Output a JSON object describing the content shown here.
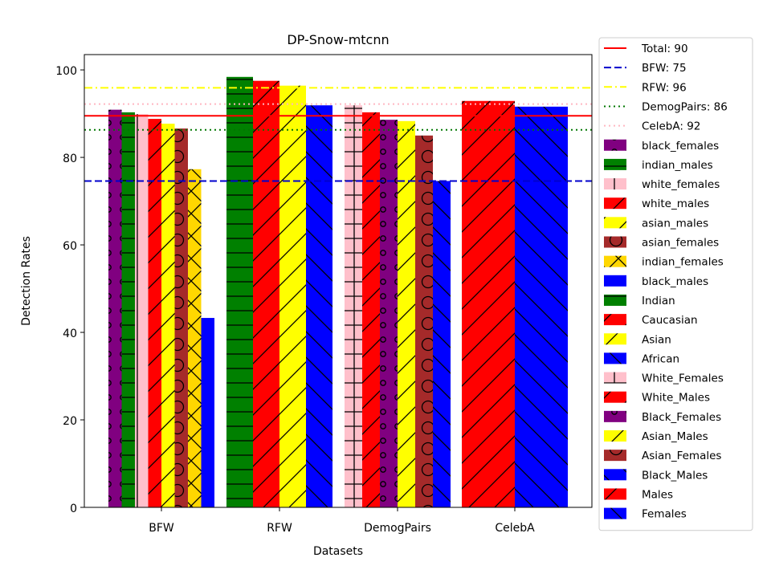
{
  "chart_data": {
    "type": "bar",
    "title": "DP-Snow-mtcnn",
    "xlabel": "Datasets",
    "ylabel": "Detection Rates",
    "ylim": [
      0,
      103.5
    ],
    "yticks": [
      0,
      20,
      40,
      60,
      80,
      100
    ],
    "categories": [
      "BFW",
      "RFW",
      "DemogPairs",
      "CelebA"
    ],
    "grid": false,
    "legend_position": "right-outside",
    "reference_lines": [
      {
        "name": "Total: 90",
        "value": 89.5,
        "color": "#ff0000",
        "style": "solid"
      },
      {
        "name": "BFW: 75",
        "value": 74.6,
        "color": "#0000cc",
        "style": "dashed"
      },
      {
        "name": "RFW: 96",
        "value": 95.9,
        "color": "#ffff00",
        "style": "dashdot"
      },
      {
        "name": "DemogPairs: 86",
        "value": 86.3,
        "color": "#007700",
        "style": "dotted"
      },
      {
        "name": "CelebA: 92",
        "value": 92.2,
        "color": "#ffb6c1",
        "style": "dotted"
      }
    ],
    "groups": [
      {
        "category": "BFW",
        "bars": [
          {
            "name": "black_females",
            "value": 90.9,
            "color": "#800080",
            "hatch": "o"
          },
          {
            "name": "indian_males",
            "value": 90.3,
            "color": "#008000",
            "hatch": "-"
          },
          {
            "name": "white_females",
            "value": 89.9,
            "color": "#ffc0cb",
            "hatch": "|"
          },
          {
            "name": "white_males",
            "value": 88.8,
            "color": "#ff0000",
            "hatch": "/"
          },
          {
            "name": "asian_males",
            "value": 87.7,
            "color": "#ffff00",
            "hatch": "/"
          },
          {
            "name": "asian_females",
            "value": 86.6,
            "color": "#a52a2a",
            "hatch": "O"
          },
          {
            "name": "indian_females",
            "value": 77.3,
            "color": "#ffd700",
            "hatch": "x"
          },
          {
            "name": "black_males",
            "value": 43.3,
            "color": "#0000ff",
            "hatch": ""
          }
        ]
      },
      {
        "category": "RFW",
        "bars": [
          {
            "name": "Indian",
            "value": 98.4,
            "color": "#008000",
            "hatch": "-"
          },
          {
            "name": "Caucasian",
            "value": 97.5,
            "color": "#ff0000",
            "hatch": "/"
          },
          {
            "name": "Asian",
            "value": 96.4,
            "color": "#ffff00",
            "hatch": "/"
          },
          {
            "name": "African",
            "value": 91.9,
            "color": "#0000ff",
            "hatch": "\\"
          }
        ]
      },
      {
        "category": "DemogPairs",
        "bars": [
          {
            "name": "White_Females",
            "value": 91.9,
            "color": "#ffc0cb",
            "hatch": "+"
          },
          {
            "name": "White_Males",
            "value": 90.3,
            "color": "#ff0000",
            "hatch": "/"
          },
          {
            "name": "Black_Females",
            "value": 88.6,
            "color": "#800080",
            "hatch": "o"
          },
          {
            "name": "Asian_Males",
            "value": 88.3,
            "color": "#ffff00",
            "hatch": "/"
          },
          {
            "name": "Asian_Females",
            "value": 85.0,
            "color": "#a52a2a",
            "hatch": "O"
          },
          {
            "name": "Black_Males",
            "value": 74.6,
            "color": "#0000ff",
            "hatch": "\\"
          }
        ]
      },
      {
        "category": "CelebA",
        "bars": [
          {
            "name": "Males",
            "value": 92.9,
            "color": "#ff0000",
            "hatch": "/"
          },
          {
            "name": "Females",
            "value": 91.6,
            "color": "#0000ff",
            "hatch": "\\"
          }
        ]
      }
    ],
    "legend": [
      {
        "label": "Total: 90",
        "kind": "line",
        "color": "#ff0000",
        "style": "solid"
      },
      {
        "label": "BFW: 75",
        "kind": "line",
        "color": "#0000cc",
        "style": "dashed"
      },
      {
        "label": "RFW: 96",
        "kind": "line",
        "color": "#ffff00",
        "style": "dashdot"
      },
      {
        "label": "DemogPairs: 86",
        "kind": "line",
        "color": "#007700",
        "style": "dotted"
      },
      {
        "label": "CelebA: 92",
        "kind": "line",
        "color": "#ffb6c1",
        "style": "dotted"
      },
      {
        "label": "black_females",
        "kind": "patch",
        "color": "#800080",
        "hatch": "o"
      },
      {
        "label": "indian_males",
        "kind": "patch",
        "color": "#008000",
        "hatch": "-"
      },
      {
        "label": "white_females",
        "kind": "patch",
        "color": "#ffc0cb",
        "hatch": "|"
      },
      {
        "label": "white_males",
        "kind": "patch",
        "color": "#ff0000",
        "hatch": "/"
      },
      {
        "label": "asian_males",
        "kind": "patch",
        "color": "#ffff00",
        "hatch": "/"
      },
      {
        "label": "asian_females",
        "kind": "patch",
        "color": "#a52a2a",
        "hatch": "O"
      },
      {
        "label": "indian_females",
        "kind": "patch",
        "color": "#ffd700",
        "hatch": "x"
      },
      {
        "label": "black_males",
        "kind": "patch",
        "color": "#0000ff",
        "hatch": ""
      },
      {
        "label": "Indian",
        "kind": "patch",
        "color": "#008000",
        "hatch": "-"
      },
      {
        "label": "Caucasian",
        "kind": "patch",
        "color": "#ff0000",
        "hatch": "/"
      },
      {
        "label": "Asian",
        "kind": "patch",
        "color": "#ffff00",
        "hatch": "/"
      },
      {
        "label": "African",
        "kind": "patch",
        "color": "#0000ff",
        "hatch": "\\"
      },
      {
        "label": "White_Females",
        "kind": "patch",
        "color": "#ffc0cb",
        "hatch": "+"
      },
      {
        "label": "White_Males",
        "kind": "patch",
        "color": "#ff0000",
        "hatch": "/"
      },
      {
        "label": "Black_Females",
        "kind": "patch",
        "color": "#800080",
        "hatch": "o"
      },
      {
        "label": "Asian_Males",
        "kind": "patch",
        "color": "#ffff00",
        "hatch": "/"
      },
      {
        "label": "Asian_Females",
        "kind": "patch",
        "color": "#a52a2a",
        "hatch": "O"
      },
      {
        "label": "Black_Males",
        "kind": "patch",
        "color": "#0000ff",
        "hatch": "\\"
      },
      {
        "label": "Males",
        "kind": "patch",
        "color": "#ff0000",
        "hatch": "/"
      },
      {
        "label": "Females",
        "kind": "patch",
        "color": "#0000ff",
        "hatch": "\\"
      }
    ]
  }
}
